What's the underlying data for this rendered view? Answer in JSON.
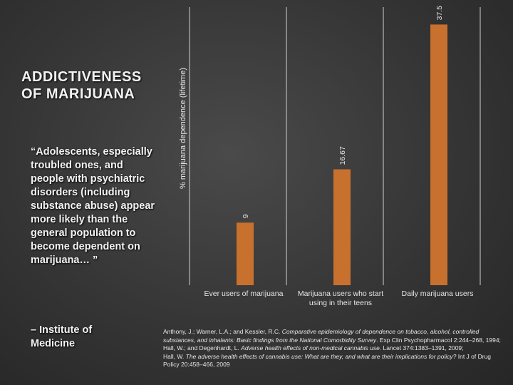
{
  "slide": {
    "title_line1": "ADDICTIVENESS",
    "title_line2": "OF MARIJUANA",
    "quote": "“Adolescents, especially troubled ones, and people with psychiatric disorders (including substance abuse) appear more likely than the general population to become dependent on marijuana… ”",
    "attribution": "– Institute of Medicine",
    "references": [
      {
        "text": "Anthony, J.; Warner, L.A.; and Kessler, R.C. ",
        "italic": "Comparative epidemiology of dependence on tobacco, alcohol, controlled substances, and inhalants: Basic findings from the National Comorbidity Survey",
        "suffix": ". Exp Clin Psychopharmacol 2:244–268, 1994;"
      },
      {
        "text": "Hall, W.; and Degenhardt, L. ",
        "italic": "Adverse health effects of non-medical cannabis use",
        "suffix": ". Lancet 374:1383–1391, 2009;"
      },
      {
        "text": "Hall, W. ",
        "italic": "The adverse health effects of cannabis use: What are they, and what are their implications for policy?",
        "suffix": " Int J of Drug Policy 20:458–466, 2009"
      }
    ]
  },
  "chart_data": {
    "type": "bar",
    "categories": [
      "Ever users of marijuana",
      "Marijuana users who start using in their teens",
      "Daily marijuana users"
    ],
    "values": [
      9,
      16.67,
      37.5
    ],
    "value_labels": [
      "9",
      "16.67",
      "37.5"
    ],
    "title": "",
    "xlabel": "",
    "ylabel": "% marijuana dependence (lifetime)",
    "ylim": [
      0,
      40
    ],
    "grid": false,
    "bar_color": "#c8702e",
    "axis_color": "#d0d0d0",
    "separator_color": "#d0d0d0"
  }
}
